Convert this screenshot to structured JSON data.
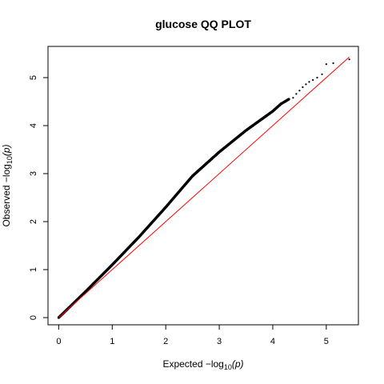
{
  "chart_data": {
    "type": "scatter",
    "title": "glucose QQ PLOT",
    "xlabel": {
      "prefix": "Expected  −log",
      "sub": "10",
      "suffix": "(p)"
    },
    "ylabel": {
      "prefix": "Observed  −log",
      "sub": "10",
      "suffix": "(p)"
    },
    "xlim": [
      -0.2,
      5.6
    ],
    "ylim": [
      -0.15,
      5.65
    ],
    "x_ticks": [
      0,
      1,
      2,
      3,
      4,
      5
    ],
    "y_ticks": [
      0,
      1,
      2,
      3,
      4,
      5
    ],
    "tick_labels_x": [
      "0",
      "1",
      "2",
      "3",
      "4",
      "5"
    ],
    "tick_labels_y": [
      "0",
      "1",
      "2",
      "3",
      "4",
      "5"
    ],
    "grid": false,
    "reference_line": {
      "x": [
        0,
        5.43
      ],
      "y": [
        0,
        5.43
      ],
      "color": "#ff0000"
    },
    "series": [
      {
        "color": "#000000",
        "curve_points": [
          [
            0.0,
            0.0
          ],
          [
            0.5,
            0.54
          ],
          [
            1.0,
            1.1
          ],
          [
            1.5,
            1.68
          ],
          [
            2.0,
            2.3
          ],
          [
            2.5,
            2.95
          ],
          [
            3.0,
            3.45
          ],
          [
            3.5,
            3.9
          ],
          [
            4.0,
            4.3
          ],
          [
            4.15,
            4.45
          ],
          [
            4.3,
            4.55
          ]
        ],
        "tail_points": [
          [
            4.38,
            4.58
          ],
          [
            4.44,
            4.66
          ],
          [
            4.5,
            4.73
          ],
          [
            4.56,
            4.8
          ],
          [
            4.62,
            4.86
          ],
          [
            4.68,
            4.91
          ],
          [
            4.75,
            4.95
          ],
          [
            4.83,
            5.0
          ],
          [
            4.92,
            5.07
          ],
          [
            5.0,
            5.28
          ],
          [
            5.13,
            5.3
          ],
          [
            5.43,
            5.38
          ]
        ]
      }
    ]
  }
}
